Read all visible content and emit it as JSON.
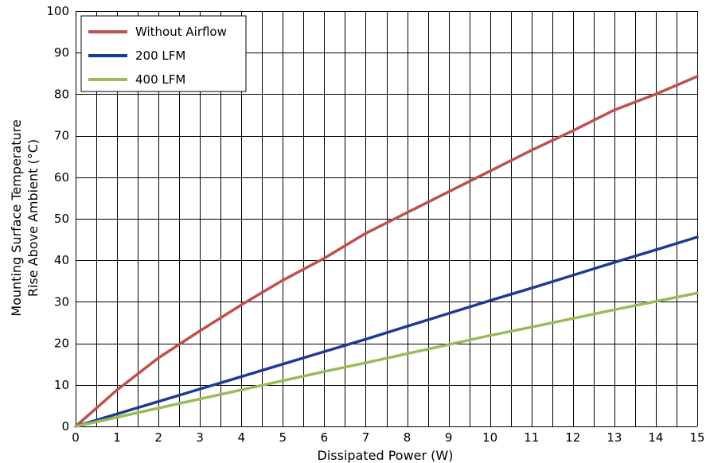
{
  "chart_data": {
    "type": "line",
    "title": "",
    "xlabel": "Dissipated Power (W)",
    "ylabel_lines": [
      "Mounting Surface Temperature",
      "Rise Above  Ambient (°C)"
    ],
    "xlim": [
      0,
      15
    ],
    "ylim": [
      0,
      100
    ],
    "x_major_ticks": [
      0,
      1,
      2,
      3,
      4,
      5,
      6,
      7,
      8,
      9,
      10,
      11,
      12,
      13,
      14,
      15
    ],
    "x_tick_labels": [
      "0",
      "1",
      "2",
      "3",
      "4",
      "5",
      "6",
      "7",
      "8",
      "9",
      "10",
      "11",
      "12",
      "13",
      "14",
      "15"
    ],
    "x_grid_step": 0.5,
    "y_major_ticks": [
      0,
      10,
      20,
      30,
      40,
      50,
      60,
      70,
      80,
      90,
      100
    ],
    "y_tick_labels": [
      "0",
      "10",
      "20",
      "30",
      "40",
      "50",
      "60",
      "70",
      "80",
      "90",
      "100"
    ],
    "grid": true,
    "legend_position": "top-left",
    "series": [
      {
        "name": "Without Airflow",
        "color": "#c0504d",
        "x": [
          0,
          1,
          2,
          3,
          4,
          5,
          6,
          7,
          8,
          9,
          10,
          11,
          12,
          13,
          14,
          15
        ],
        "y": [
          0,
          8.8,
          16.5,
          23,
          29.3,
          35.2,
          40.5,
          46.5,
          51.5,
          56.5,
          61.5,
          66.5,
          71.2,
          76.2,
          80,
          84.3
        ]
      },
      {
        "name": "200 LFM",
        "color": "#1f3a93",
        "x": [
          0,
          1,
          2,
          3,
          4,
          5,
          6,
          7,
          8,
          9,
          10,
          11,
          12,
          13,
          14,
          15
        ],
        "y": [
          0,
          3,
          6,
          9,
          12,
          15,
          18,
          21,
          24.1,
          27.2,
          30.3,
          33.3,
          36.4,
          39.5,
          42.5,
          45.6
        ]
      },
      {
        "name": "400 LFM",
        "color": "#9bbb59",
        "x": [
          0,
          1,
          2,
          3,
          4,
          5,
          6,
          7,
          8,
          9,
          10,
          11,
          12,
          13,
          14,
          15
        ],
        "y": [
          0,
          2.2,
          4.4,
          6.6,
          8.8,
          11,
          13.2,
          15.3,
          17.5,
          19.7,
          21.9,
          23.9,
          26,
          28.1,
          30.1,
          32.1
        ]
      }
    ]
  }
}
